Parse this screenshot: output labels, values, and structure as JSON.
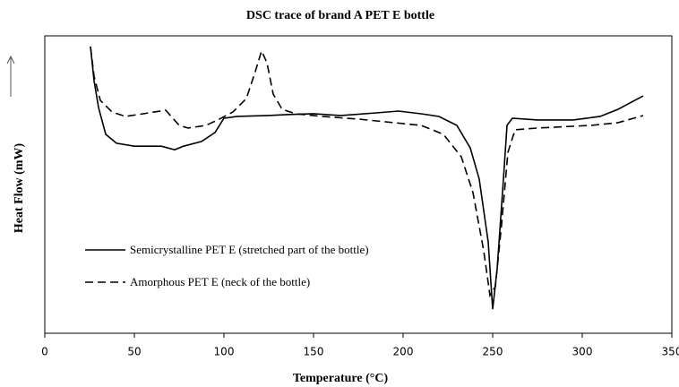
{
  "chart_data": {
    "type": "line",
    "title": "DSC trace of brand A PET E bottle",
    "x_label": "Temperature (°C)",
    "y_label": "Heat Flow (mW)",
    "xlim": [
      0,
      350
    ],
    "xticks": [
      0,
      50,
      100,
      150,
      200,
      250,
      300,
      350
    ],
    "ylim": [
      0,
      100
    ],
    "series": [
      {
        "name": "Semicrystalline PET E (stretched part of the bottle)",
        "color": "#000000",
        "dash": "solid",
        "x": [
          25.5,
          27.5,
          30,
          34,
          40,
          50,
          65,
          72.5,
          77.5,
          87.5,
          95,
          100,
          107.5,
          125,
          135,
          150,
          165,
          185,
          197.5,
          210,
          220,
          230,
          237.5,
          242.5,
          247.5,
          250,
          252.5,
          256,
          258,
          261,
          275,
          295,
          310,
          320,
          334
        ],
        "values": [
          96.4,
          84.9,
          75.9,
          66.9,
          63.9,
          62.9,
          62.9,
          61.7,
          62.9,
          64.5,
          67.5,
          72.3,
          72.9,
          73.2,
          73.5,
          73.8,
          73.2,
          74.1,
          74.7,
          73.8,
          72.9,
          69.9,
          62.3,
          51.8,
          30.7,
          8.1,
          21.7,
          51.8,
          69.9,
          72.3,
          71.7,
          71.7,
          72.9,
          75.3,
          79.8
        ]
      },
      {
        "name": "Amorphous PET E (neck of the bottle)",
        "color": "#000000",
        "dash": "dashed",
        "x": [
          25.5,
          27.5,
          31,
          37.5,
          45,
          55,
          67.5,
          75,
          80,
          90,
          97.5,
          105,
          112.5,
          117.5,
          121,
          124,
          127.5,
          132.5,
          140,
          155,
          175,
          195,
          210,
          222.5,
          232.5,
          239,
          245,
          248.5,
          251.5,
          255,
          258.5,
          262.5,
          275,
          305,
          320,
          334
        ],
        "values": [
          96.4,
          86.4,
          78.3,
          74.4,
          72.9,
          73.8,
          75.0,
          69.9,
          69.0,
          69.9,
          72.0,
          74.4,
          78.9,
          88.0,
          94.9,
          91.0,
          80.4,
          75.3,
          73.8,
          72.9,
          72.0,
          70.8,
          69.9,
          66.9,
          59.3,
          47.3,
          27.7,
          12.7,
          15.7,
          36.7,
          60.8,
          68.4,
          69.0,
          69.9,
          70.8,
          73.2
        ]
      }
    ]
  }
}
